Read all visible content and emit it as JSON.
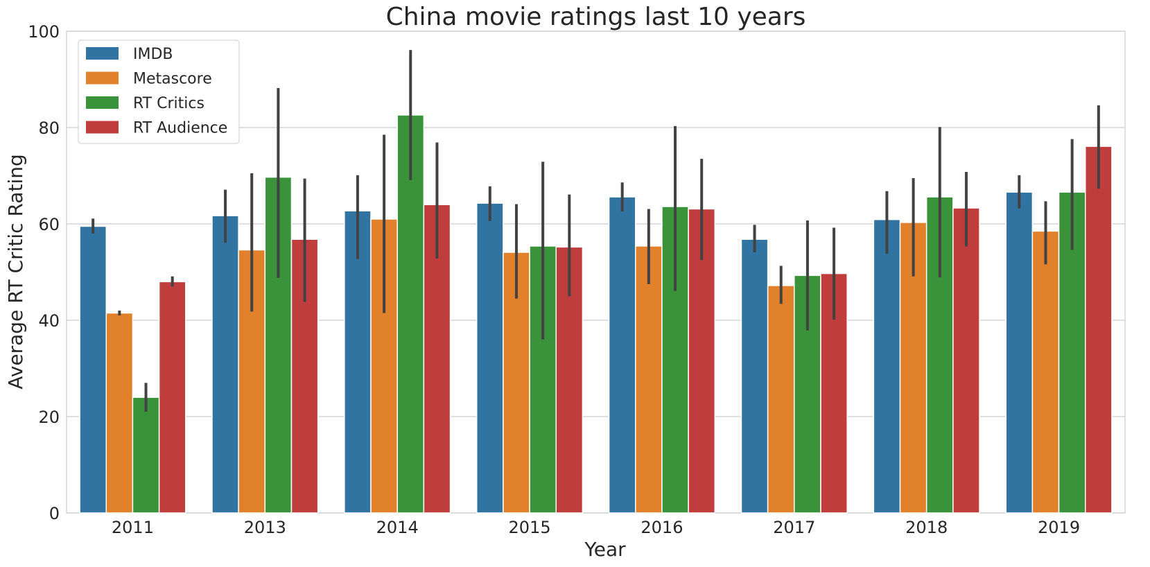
{
  "chart_data": {
    "type": "bar",
    "title": "China movie ratings last 10 years",
    "xlabel": "Year",
    "ylabel": "Average RT Critic Rating",
    "ylim": [
      0,
      100
    ],
    "yticks": [
      0,
      20,
      40,
      60,
      80,
      100
    ],
    "grid": true,
    "legend_position": "top-left",
    "categories": [
      "2011",
      "2013",
      "2014",
      "2015",
      "2016",
      "2017",
      "2018",
      "2019"
    ],
    "series": [
      {
        "name": "IMDB",
        "color": "#3274a1",
        "values": [
          59.5,
          61.7,
          62.7,
          64.3,
          65.6,
          56.8,
          60.9,
          66.6
        ],
        "ci_low": [
          58.0,
          56.1,
          52.7,
          60.6,
          62.6,
          54.1,
          53.8,
          63.2
        ],
        "ci_high": [
          61.1,
          67.1,
          70.1,
          67.8,
          68.6,
          59.8,
          66.8,
          70.1
        ]
      },
      {
        "name": "Metascore",
        "color": "#e1812c",
        "values": [
          41.5,
          54.6,
          61.0,
          54.1,
          55.4,
          47.2,
          60.3,
          58.5
        ],
        "ci_low": [
          41.0,
          41.8,
          41.5,
          44.5,
          47.5,
          43.4,
          49.1,
          51.6
        ],
        "ci_high": [
          42.0,
          70.5,
          78.5,
          64.1,
          63.1,
          51.3,
          69.5,
          64.7
        ]
      },
      {
        "name": "RT Critics",
        "color": "#3a923a",
        "values": [
          24.0,
          69.7,
          82.6,
          55.4,
          63.6,
          49.3,
          65.6,
          66.6
        ],
        "ci_low": [
          21.0,
          48.8,
          69.1,
          36.0,
          46.1,
          37.9,
          48.9,
          54.6
        ],
        "ci_high": [
          27.0,
          88.2,
          96.1,
          72.9,
          80.3,
          60.7,
          80.1,
          77.6
        ]
      },
      {
        "name": "RT Audience",
        "color": "#c03d3e",
        "values": [
          48.0,
          56.8,
          64.0,
          55.2,
          63.1,
          49.7,
          63.3,
          76.1
        ],
        "ci_low": [
          47.0,
          43.8,
          52.8,
          45.0,
          52.5,
          40.1,
          55.3,
          67.3
        ],
        "ci_high": [
          49.1,
          69.4,
          76.9,
          66.1,
          73.5,
          59.2,
          70.8,
          84.6
        ]
      }
    ]
  }
}
